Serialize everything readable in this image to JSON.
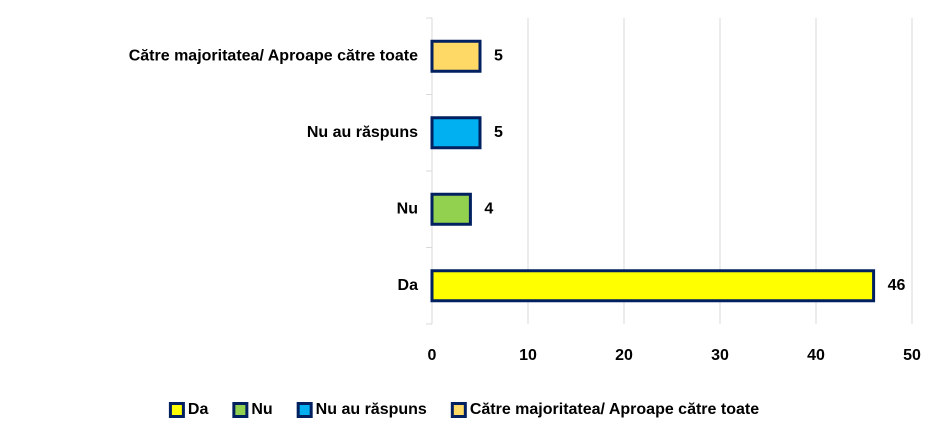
{
  "chart_data": {
    "type": "bar",
    "orientation": "horizontal",
    "categories": [
      "Da",
      "Nu",
      "Nu au răspuns",
      "Către majoritatea/ Aproape către toate"
    ],
    "values": [
      46,
      4,
      5,
      5
    ],
    "colors": [
      "#ffff00",
      "#92d050",
      "#00b0f0",
      "#ffd966"
    ],
    "edge_color": "#002060",
    "xlim": [
      0,
      50
    ],
    "xticks": [
      0,
      10,
      20,
      30,
      40,
      50
    ],
    "grid": true,
    "legend": "bottom"
  }
}
